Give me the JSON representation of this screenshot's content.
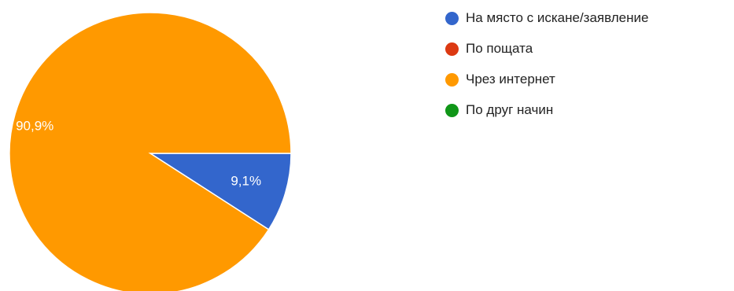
{
  "chart_data": {
    "type": "pie",
    "title": "",
    "legend_position": "right",
    "slices": [
      {
        "name": "На място с искане/заявление",
        "value": 9.1,
        "label": "9,1%",
        "color": "#3366cc"
      },
      {
        "name": "По пощата",
        "value": 0,
        "label": "",
        "color": "#dc3912"
      },
      {
        "name": "Чрез интернет",
        "value": 90.9,
        "label": "90,9%",
        "color": "#ff9900"
      },
      {
        "name": "По друг начин",
        "value": 0,
        "label": "",
        "color": "#109618"
      }
    ]
  }
}
